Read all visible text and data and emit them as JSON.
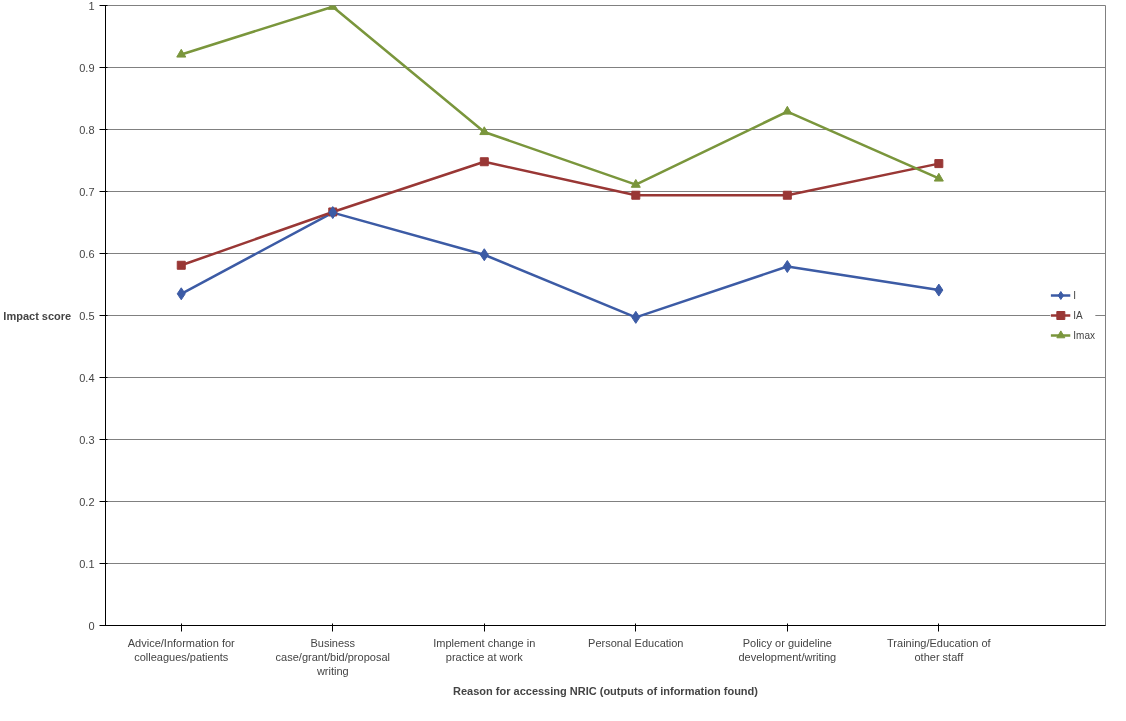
{
  "chart_data": {
    "type": "line",
    "xlabel": "Reason for accessing NRIC (outputs of information found)",
    "ylabel": "Impact score",
    "categories": [
      "Advice/Information for colleagues/patients",
      "Business case/grant/bid/proposal writing",
      "Implement change in practice at work",
      "Personal Education",
      "Policy or guideline development/writing",
      "Training/Education of other staff"
    ],
    "series": [
      {
        "name": "I",
        "color": "#3c5ba5",
        "marker": "diamond",
        "values": [
          0.535,
          0.666,
          0.598,
          0.497,
          0.579,
          0.541
        ]
      },
      {
        "name": "IA",
        "color": "#993735",
        "marker": "square",
        "values": [
          0.581,
          0.667,
          0.748,
          0.694,
          0.694,
          0.745
        ]
      },
      {
        "name": "Imax",
        "color": "#7a963c",
        "marker": "triangle",
        "values": [
          0.921,
          0.998,
          0.796,
          0.711,
          0.829,
          0.721
        ]
      }
    ],
    "ylim": [
      0,
      1
    ],
    "yticks": [
      0,
      0.1,
      0.2,
      0.3,
      0.4,
      0.5,
      0.6,
      0.7,
      0.8,
      0.9,
      1
    ],
    "grid": "y",
    "legend": "right"
  }
}
